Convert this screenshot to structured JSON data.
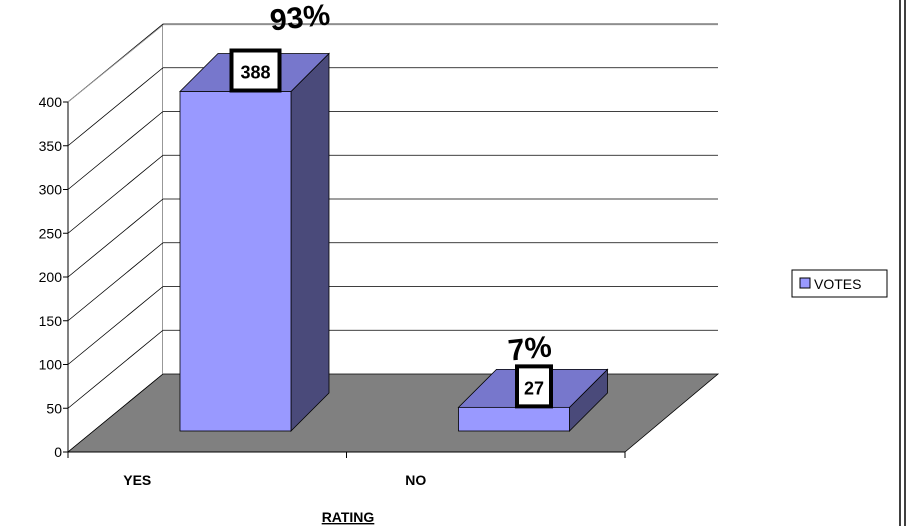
{
  "chart_data": {
    "type": "bar",
    "categories": [
      "YES",
      "NO"
    ],
    "series": [
      {
        "name": "VOTES",
        "values": [
          388,
          27
        ]
      }
    ],
    "data_labels": [
      "388",
      "27"
    ],
    "percent_labels": [
      "93%",
      "7%"
    ],
    "xlabel": "RATING",
    "ylabel": "",
    "ylim": [
      0,
      400
    ],
    "yticks": [
      0,
      50,
      100,
      150,
      200,
      250,
      300,
      350,
      400
    ],
    "grid": true,
    "legend": "right",
    "colors": {
      "bar_front": "#9999ff",
      "bar_side": "#4a4a7a",
      "bar_top": "#7777cc",
      "floor": "#808080"
    }
  }
}
